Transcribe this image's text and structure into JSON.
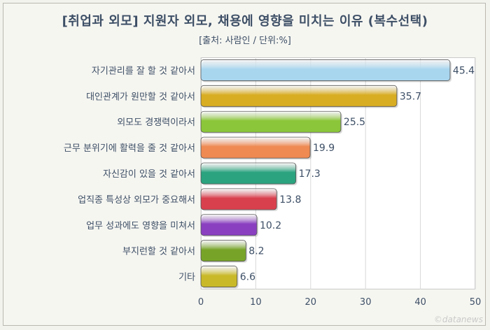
{
  "chart_data": {
    "type": "bar",
    "orientation": "horizontal",
    "title": "[취업과 외모] 지원자 외모, 채용에 영향을 미치는 이유 (복수선택)",
    "subtitle": "[출처: 사람인 / 단위:%]",
    "categories": [
      "자기관리를 잘 할 것 같아서",
      "대인관계가 원만할 것 같아서",
      "외모도 경쟁력이라서",
      "근무 분위기에 활력을 줄 것 같아서",
      "자신감이 있을 것 같아서",
      "업직종 특성상 외모가 중요해서",
      "업무 성과에도 영향을 미쳐서",
      "부지런할 것 같아서",
      "기타"
    ],
    "values": [
      45.4,
      35.7,
      25.5,
      19.9,
      17.3,
      13.8,
      10.2,
      8.2,
      6.6
    ],
    "value_labels": [
      "45.4",
      "35.7",
      "25.5",
      "19.9",
      "17.3",
      "13.8",
      "10.2",
      "8.2",
      "6.6"
    ],
    "bar_colors": [
      "#a9d6ef",
      "#d9ad22",
      "#8bc63a",
      "#ef8a52",
      "#2aa37e",
      "#d9404e",
      "#8a3fc0",
      "#77a428",
      "#c9b928"
    ],
    "xlim": [
      0,
      50
    ],
    "xticks": [
      "0",
      "10",
      "20",
      "30",
      "40",
      "50"
    ],
    "grid": true,
    "xlabel": "",
    "ylabel": ""
  },
  "watermark": "©datanews"
}
